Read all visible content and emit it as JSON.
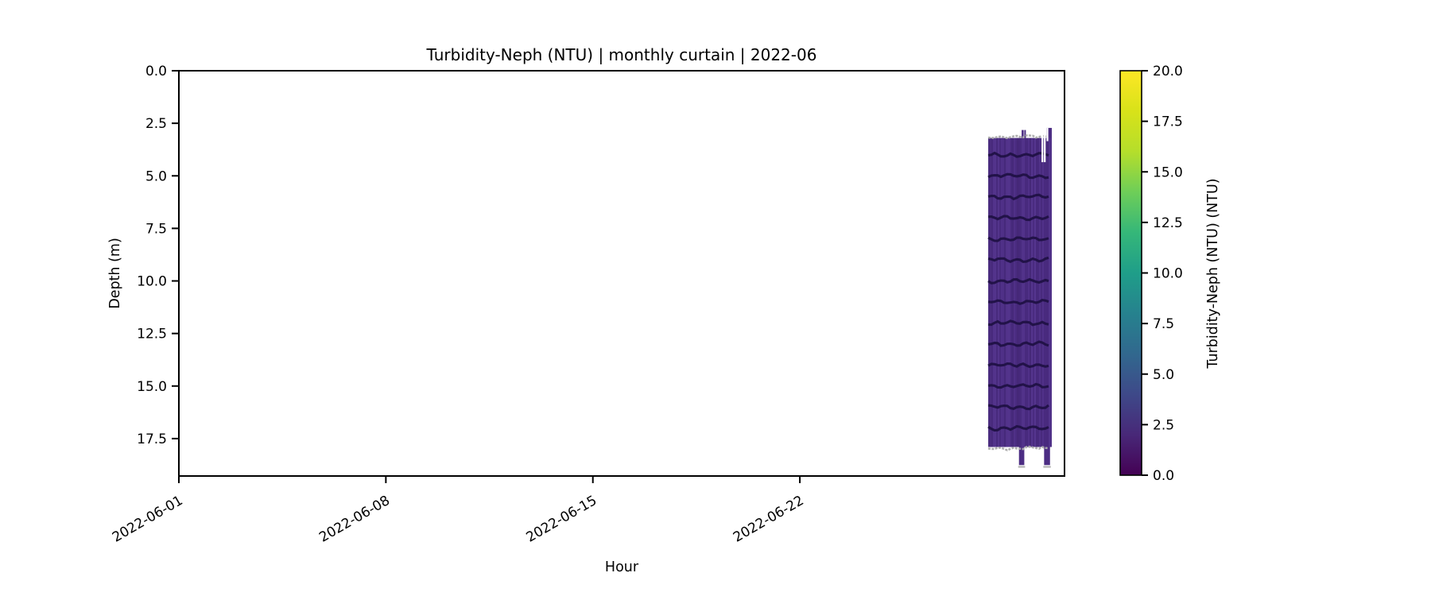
{
  "chart_data": {
    "type": "heatmap",
    "title": "Turbidity-Neph (NTU) | monthly curtain | 2022-06",
    "xlabel": "Hour",
    "ylabel": "Depth (m)",
    "grid": false,
    "x_axis": {
      "range_days": [
        1,
        30.95
      ],
      "ticks": [
        {
          "label": "2022-06-01",
          "day": 1
        },
        {
          "label": "2022-06-08",
          "day": 8
        },
        {
          "label": "2022-06-15",
          "day": 15
        },
        {
          "label": "2022-06-22",
          "day": 22
        }
      ],
      "tick_rotation_deg": 30
    },
    "y_axis": {
      "range_m": [
        0,
        19.28
      ],
      "inverted": true,
      "ticks": [
        {
          "label": "0.0",
          "m": 0
        },
        {
          "label": "2.5",
          "m": 2.5
        },
        {
          "label": "5.0",
          "m": 5
        },
        {
          "label": "7.5",
          "m": 7.5
        },
        {
          "label": "10.0",
          "m": 10
        },
        {
          "label": "12.5",
          "m": 12.5
        },
        {
          "label": "15.0",
          "m": 15
        },
        {
          "label": "17.5",
          "m": 17.5
        }
      ]
    },
    "colorbar": {
      "label": "Turbidity-Neph (NTU) (NTU)",
      "vmin": 0,
      "vmax": 20,
      "colormap": "viridis",
      "gradient_stops": [
        {
          "offset": 0.0,
          "color": "#440154"
        },
        {
          "offset": 0.1,
          "color": "#482878"
        },
        {
          "offset": 0.2,
          "color": "#3e4989"
        },
        {
          "offset": 0.3,
          "color": "#31688e"
        },
        {
          "offset": 0.4,
          "color": "#26828e"
        },
        {
          "offset": 0.5,
          "color": "#1f9e89"
        },
        {
          "offset": 0.6,
          "color": "#35b779"
        },
        {
          "offset": 0.7,
          "color": "#6ece58"
        },
        {
          "offset": 0.8,
          "color": "#b5de2b"
        },
        {
          "offset": 0.9,
          "color": "#d8e219"
        },
        {
          "offset": 1.0,
          "color": "#fde725"
        }
      ],
      "ticks": [
        {
          "label": "0.0",
          "v": 0
        },
        {
          "label": "2.5",
          "v": 2.5
        },
        {
          "label": "5.0",
          "v": 5
        },
        {
          "label": "7.5",
          "v": 7.5
        },
        {
          "label": "10.0",
          "v": 10
        },
        {
          "label": "12.5",
          "v": 12.5
        },
        {
          "label": "15.0",
          "v": 15
        },
        {
          "label": "17.5",
          "v": 17.5
        },
        {
          "label": "20.0",
          "v": 20
        }
      ]
    },
    "curtain": {
      "day_start": 28.37,
      "day_end": 30.52,
      "depth_top_m": 3.2,
      "depth_bottom_m": 17.9,
      "typical_value_ntu": 2.5,
      "band_value_ntu": 0.5,
      "band_depths_m": [
        4,
        5,
        6,
        7,
        8,
        9,
        10,
        11,
        12,
        13,
        14,
        15,
        16,
        17
      ],
      "upspikes": [
        {
          "day0": 29.5,
          "day1": 29.57,
          "top_depth_m": 2.82
        },
        {
          "day0": 29.59,
          "day1": 29.64,
          "top_depth_m": 2.82
        },
        {
          "day0": 30.34,
          "day1": 30.52,
          "top_depth_m": 2.72
        }
      ],
      "downspikes": [
        {
          "day0": 29.41,
          "day1": 29.59,
          "bottom_depth_m": 18.76
        },
        {
          "day0": 30.26,
          "day1": 30.46,
          "bottom_depth_m": 18.76
        }
      ],
      "white_slits": [
        {
          "day": 30.2,
          "depth0": 2.95,
          "depth1": 4.35
        },
        {
          "day": 30.28,
          "depth0": 2.95,
          "depth1": 4.35
        },
        {
          "day": 30.37,
          "depth0": 2.72,
          "depth1": 3.35
        }
      ],
      "colors": {
        "base": "#4c2d83",
        "band": "#1e1043",
        "streak_light": "#6a4aa8",
        "streak_dark": "#381f63",
        "edge_gray": "#ababab"
      }
    },
    "colors": {
      "background": "#ffffff",
      "axis": "#000000",
      "text": "#000000"
    }
  }
}
